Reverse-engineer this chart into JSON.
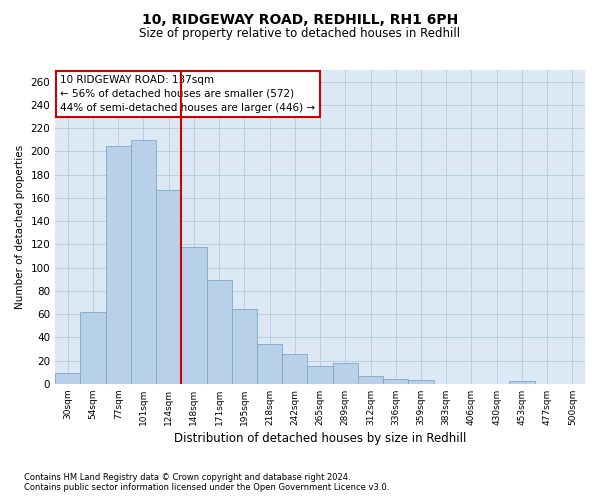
{
  "title": "10, RIDGEWAY ROAD, REDHILL, RH1 6PH",
  "subtitle": "Size of property relative to detached houses in Redhill",
  "xlabel": "Distribution of detached houses by size in Redhill",
  "ylabel": "Number of detached properties",
  "annotation_line1": "10 RIDGEWAY ROAD: 137sqm",
  "annotation_line2": "← 56% of detached houses are smaller (572)",
  "annotation_line3": "44% of semi-detached houses are larger (446) →",
  "categories": [
    "30sqm",
    "54sqm",
    "77sqm",
    "101sqm",
    "124sqm",
    "148sqm",
    "171sqm",
    "195sqm",
    "218sqm",
    "242sqm",
    "265sqm",
    "289sqm",
    "312sqm",
    "336sqm",
    "359sqm",
    "383sqm",
    "406sqm",
    "430sqm",
    "453sqm",
    "477sqm",
    "500sqm"
  ],
  "values": [
    9,
    62,
    205,
    210,
    167,
    118,
    89,
    64,
    34,
    26,
    15,
    18,
    7,
    4,
    3,
    0,
    0,
    0,
    2,
    0,
    0
  ],
  "bar_color": "#b8d0e8",
  "bar_edge_color": "#7aaac8",
  "vline_color": "#cc0000",
  "vline_x": 4.5,
  "background_color": "#ffffff",
  "plot_bg_color": "#dce8f4",
  "grid_color": "#b8cfe0",
  "ylim": [
    0,
    270
  ],
  "yticks": [
    0,
    20,
    40,
    60,
    80,
    100,
    120,
    140,
    160,
    180,
    200,
    220,
    240,
    260
  ],
  "footnote1": "Contains HM Land Registry data © Crown copyright and database right 2024.",
  "footnote2": "Contains public sector information licensed under the Open Government Licence v3.0."
}
